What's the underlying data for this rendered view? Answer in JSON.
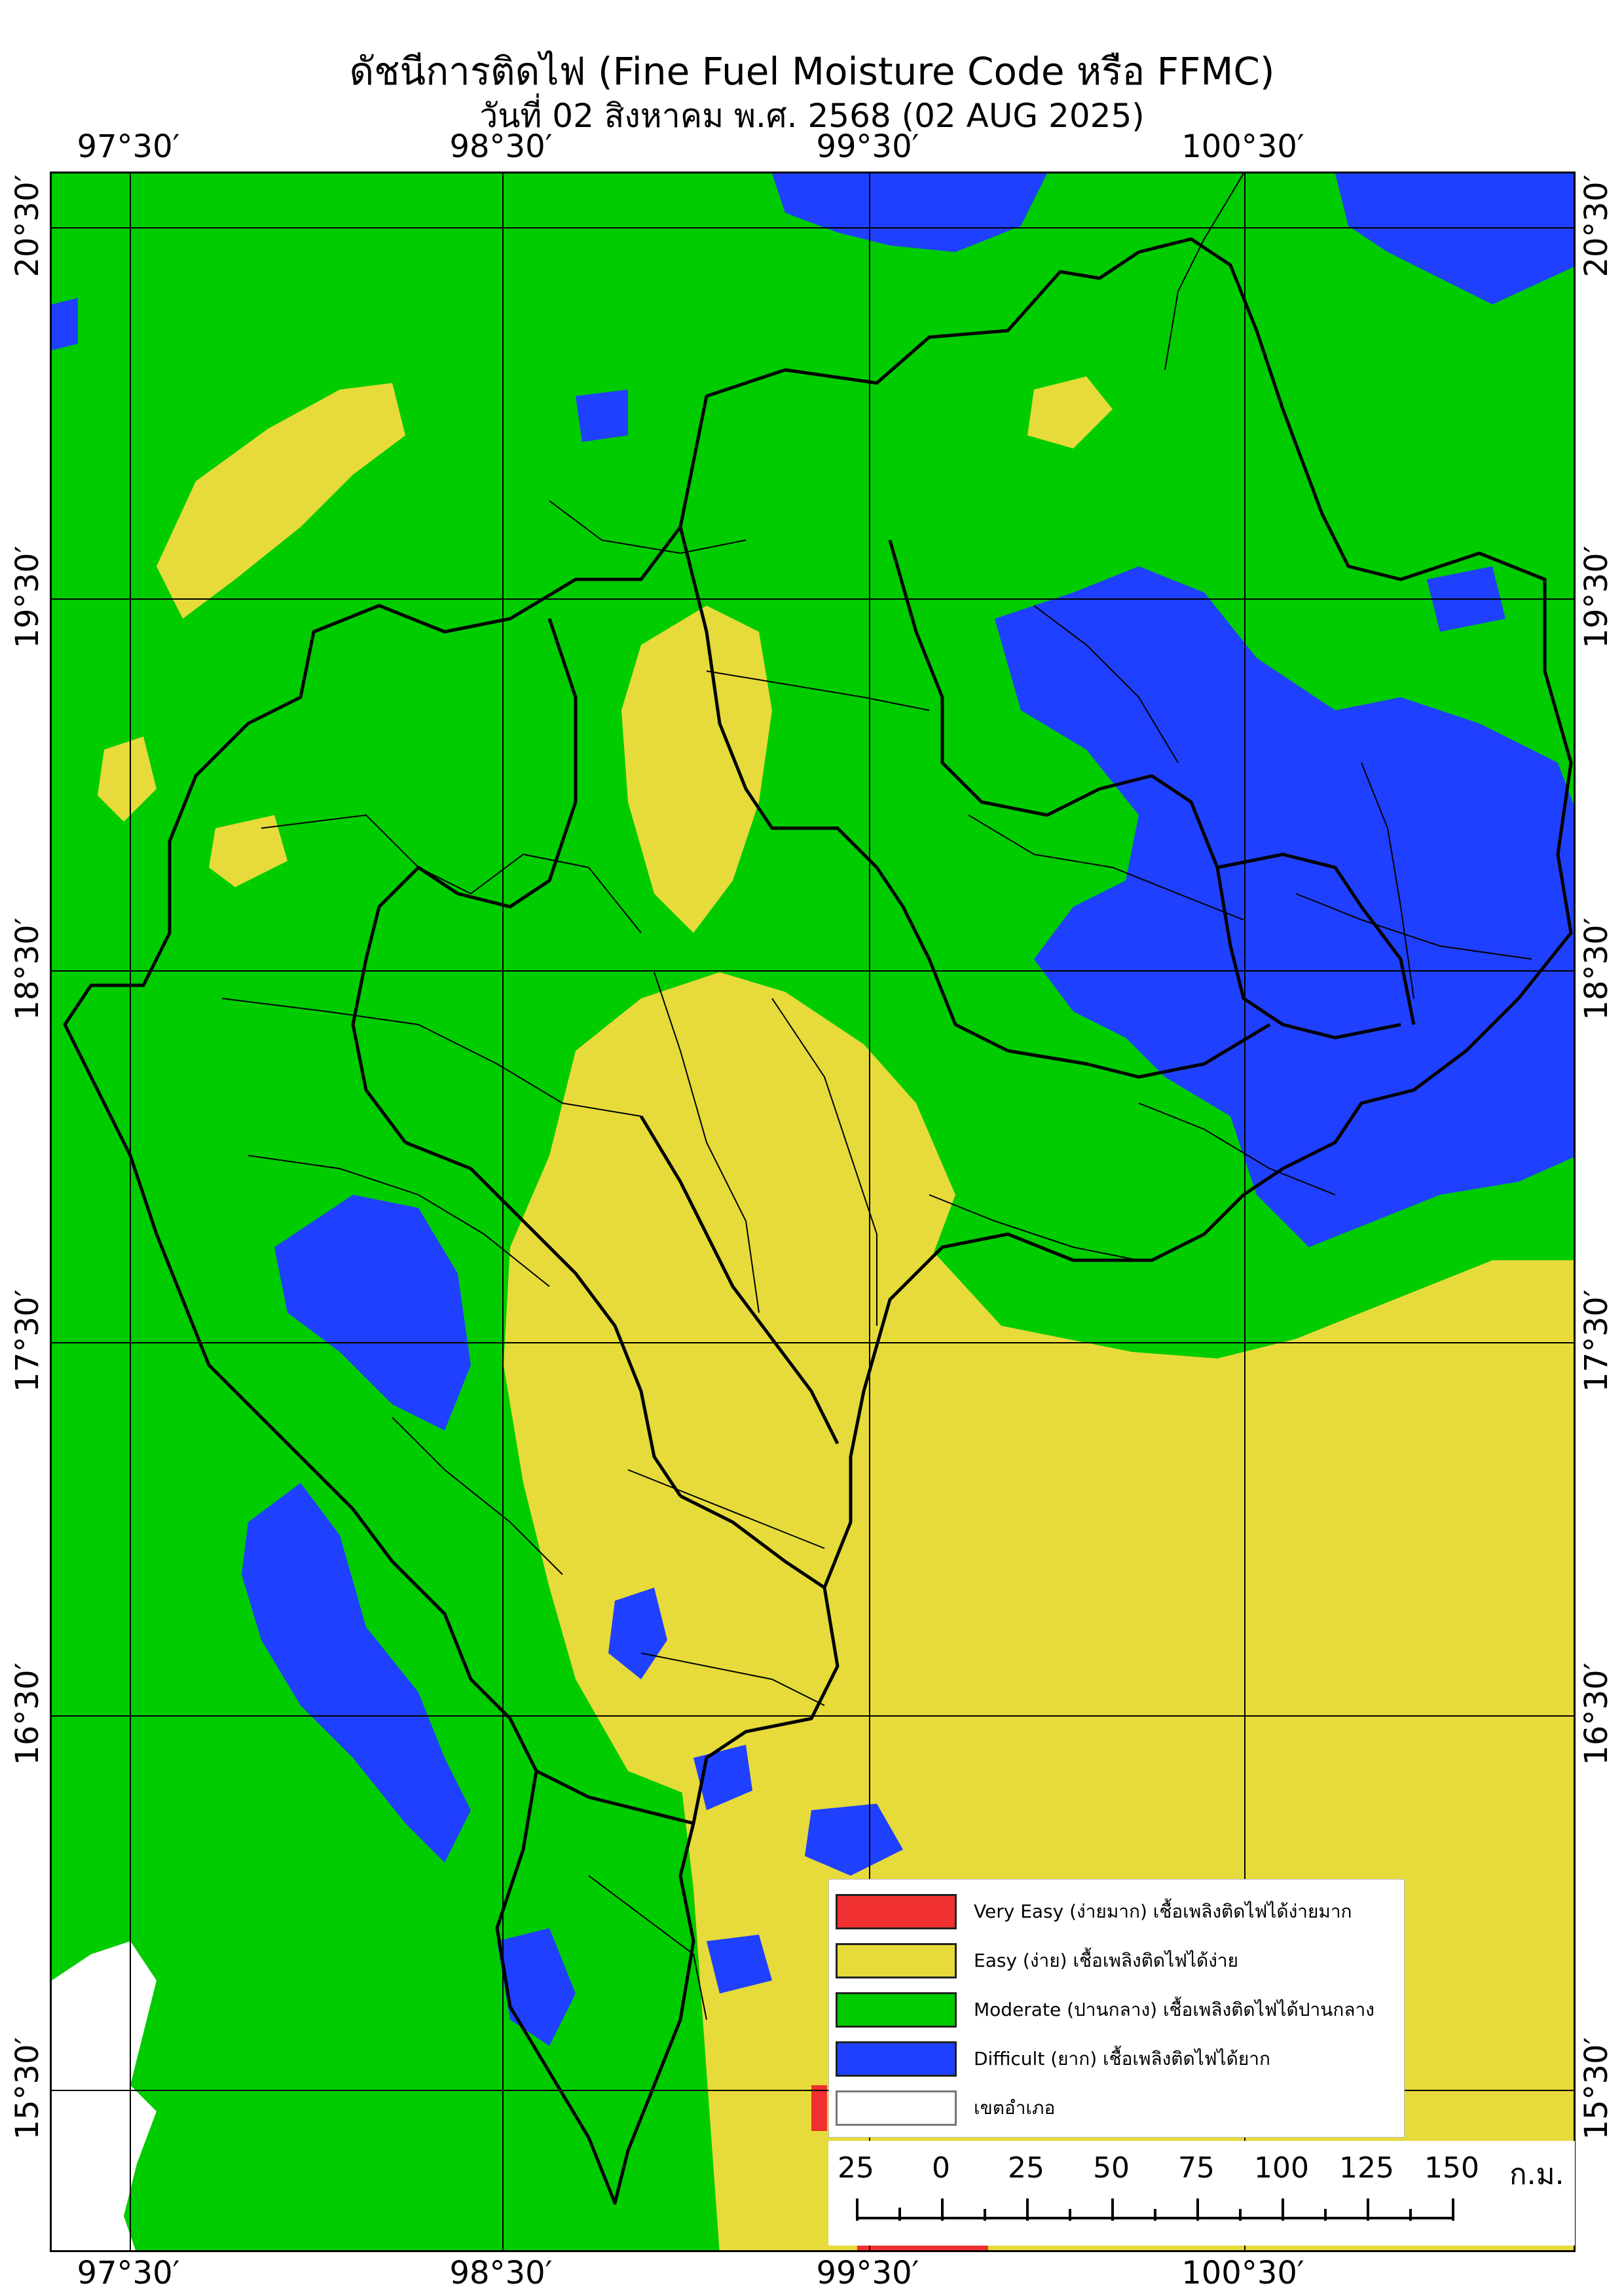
{
  "title": "ดัชนีการติดไฟ (Fine Fuel Moisture Code หรือ FFMC)",
  "subtitle": "วันที่ 02 สิงหาคม พ.ศ. 2568 (02 AUG 2025)",
  "lon_labels": [
    "97°30′",
    "98°30′",
    "99°30′",
    "100°30′"
  ],
  "lat_labels": [
    "20°30′",
    "19°30′",
    "18°30′",
    "17°30′",
    "16°30′",
    "15°30′"
  ],
  "legend": [
    {
      "label": "Very Easy (ง่ายมาก) เชื้อเพลิงติดไฟได้ง่ายมาก",
      "color": "#f03030"
    },
    {
      "label": "Easy (ง่าย) เชื้อเพลิงติดไฟได้ง่าย",
      "color": "#e6db3a"
    },
    {
      "label": "Moderate (ปานกลาง) เชื้อเพลิงติดไฟได้ปานกลาง",
      "color": "#00cc00"
    },
    {
      "label": "Difficult (ยาก) เชื้อเพลิงติดไฟได้ยาก",
      "color": "#2040ff"
    },
    {
      "label": "เขตอำเภอ",
      "color": "#ffffff"
    }
  ],
  "scale": {
    "ticks": [
      "25",
      "0",
      "25",
      "50",
      "75",
      "100",
      "125",
      "150"
    ],
    "unit": "ก.ม."
  },
  "colors": {
    "very_easy": "#f03030",
    "easy": "#e6db3a",
    "moderate": "#00cc00",
    "difficult": "#2040ff",
    "sea": "#ffffff",
    "boundary": "#000000",
    "graticule": "#000000"
  }
}
